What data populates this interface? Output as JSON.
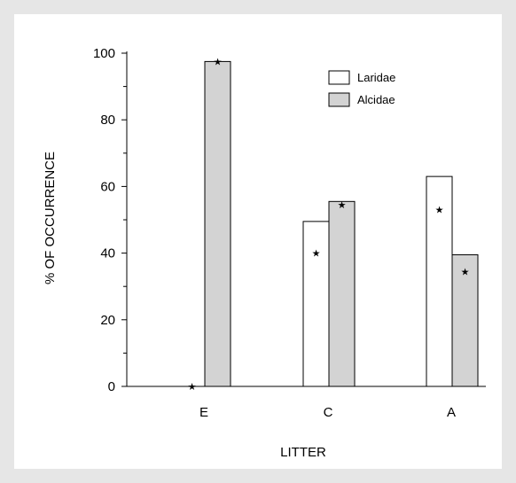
{
  "chart_data": {
    "type": "bar",
    "categories": [
      "E",
      "C",
      "A"
    ],
    "series": [
      {
        "name": "Laridae",
        "values": [
          0,
          49.5,
          63
        ],
        "fill": "#ffffff"
      },
      {
        "name": "Alcidae",
        "values": [
          97.5,
          55.5,
          39.5
        ],
        "fill": "#d3d3d3"
      }
    ],
    "star_markers": [
      {
        "category": "E",
        "series": "Laridae",
        "value": 0
      },
      {
        "category": "E",
        "series": "Alcidae",
        "value": 97.5
      },
      {
        "category": "C",
        "series": "Laridae",
        "value": 40
      },
      {
        "category": "C",
        "series": "Alcidae",
        "value": 54.5
      },
      {
        "category": "A",
        "series": "Laridae",
        "value": 53
      },
      {
        "category": "A",
        "series": "Alcidae",
        "value": 34.5
      }
    ],
    "xlabel": "LITTER",
    "ylabel": "% OF OCCURRENCE",
    "ylim": [
      0,
      100
    ],
    "yticks": [
      0,
      20,
      40,
      60,
      80,
      100
    ],
    "legend_position": "top-right",
    "grid": false
  }
}
